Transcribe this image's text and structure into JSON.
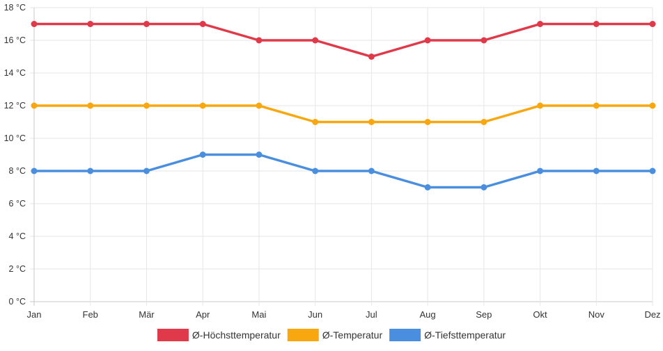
{
  "chart_data": {
    "type": "line",
    "title": "",
    "xlabel": "",
    "ylabel": "",
    "categories": [
      "Jan",
      "Feb",
      "Mär",
      "Apr",
      "Mai",
      "Jun",
      "Jul",
      "Aug",
      "Sep",
      "Okt",
      "Nov",
      "Dez"
    ],
    "ylim": [
      0,
      18
    ],
    "y_ticks": [
      "0 °C",
      "2 °C",
      "4 °C",
      "6 °C",
      "8 °C",
      "10 °C",
      "12 °C",
      "14 °C",
      "16 °C",
      "18 °C"
    ],
    "grid": true,
    "legend_position": "bottom",
    "series": [
      {
        "name": "Ø-Höchsttemperatur",
        "color": "#e0394a",
        "values": [
          17,
          17,
          17,
          17,
          16,
          16,
          15,
          16,
          16,
          17,
          17,
          17
        ]
      },
      {
        "name": "Ø-Temperatur",
        "color": "#f8a70f",
        "values": [
          12,
          12,
          12,
          12,
          12,
          11,
          11,
          11,
          11,
          12,
          12,
          12
        ]
      },
      {
        "name": "Ø-Tiefsttemperatur",
        "color": "#4a8fdf",
        "values": [
          8,
          8,
          8,
          9,
          9,
          8,
          8,
          7,
          7,
          8,
          8,
          8
        ]
      }
    ]
  }
}
